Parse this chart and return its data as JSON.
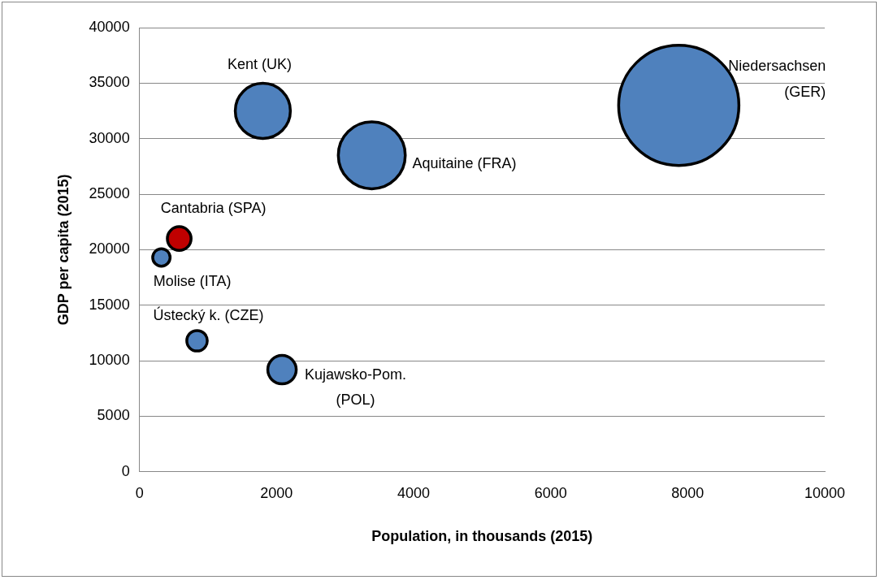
{
  "chart_data": {
    "type": "bubble",
    "xlabel": "Population, in thousands (2015)",
    "ylabel": "GDP per capita (2015)",
    "xlim": [
      0,
      10000
    ],
    "xticks": [
      0,
      2000,
      4000,
      6000,
      8000,
      10000
    ],
    "ylim": [
      0,
      40000
    ],
    "yticks": [
      0,
      5000,
      10000,
      15000,
      20000,
      25000,
      30000,
      35000,
      40000
    ],
    "grid": "y",
    "legend": false,
    "series": [
      {
        "x": [
          1800,
          3390,
          7870,
          580,
          320,
          840,
          2080
        ],
        "values": [
          32500,
          28500,
          33000,
          21000,
          19300,
          11800,
          9200
        ],
        "sizes": [
          0.21,
          0.31,
          1,
          0.039,
          0.021,
          0.029,
          0.056
        ],
        "colors": [
          "#4f81bd",
          "#4f81bd",
          "#4f81bd",
          "#c00000",
          "#4f81bd",
          "#4f81bd",
          "#4f81bd"
        ]
      }
    ],
    "annotations": [
      {
        "text": "Kent (UK)",
        "x": 1800,
        "y": 32500
      },
      {
        "text": "Aquitaine (FRA)",
        "x": 3390,
        "y": 28500
      },
      "Niedersachsen (GER)",
      {
        "text": "Cantabria (SPA)",
        "x": 580,
        "y": 21000
      },
      {
        "text": "Molise (ITA)",
        "x": 320,
        "y": 19300
      },
      {
        "text": "Ústecký k. (CZE)",
        "x": 840,
        "y": 11800
      },
      {
        "text": "Kujawsko-Pom. (POL)",
        "x": 2080,
        "y": 9200
      }
    ]
  }
}
